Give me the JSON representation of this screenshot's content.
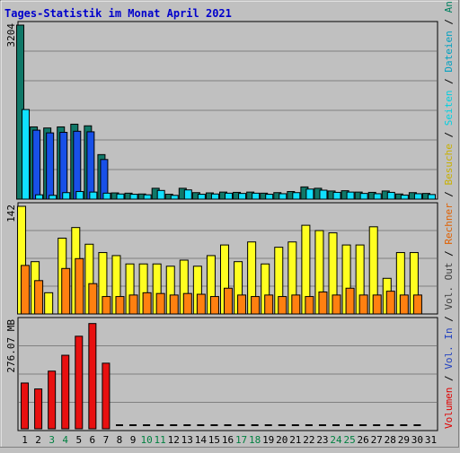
{
  "title": "Tages-Statistik im Monat April 2021",
  "colors": {
    "background": "#c0c0c0",
    "title": "#0000cc",
    "anfragen": "#008080",
    "dateien": "#00e0ff",
    "seiten": "#2050e0",
    "besuche": "#f8f800",
    "rechner": "#ff8000",
    "volumen": "#e00000",
    "weekend_label": "#008040",
    "weekday_label": "#000000"
  },
  "right_legend": [
    {
      "text": "Anfragen",
      "color": "#008060"
    },
    {
      "text": " / ",
      "color": "#000000"
    },
    {
      "text": "Dateien",
      "color": "#00a0c0"
    },
    {
      "text": " / ",
      "color": "#000000"
    },
    {
      "text": "Seiten",
      "color": "#00d0e0"
    },
    {
      "text": " / ",
      "color": "#000000"
    },
    {
      "text": "Besuche",
      "color": "#c8b000"
    },
    {
      "text": " / ",
      "color": "#000000"
    },
    {
      "text": "Rechner",
      "color": "#e06000"
    },
    {
      "text": " / ",
      "color": "#000000"
    },
    {
      "text": "Vol. Out",
      "color": "#404040"
    },
    {
      "text": " / ",
      "color": "#000000"
    },
    {
      "text": "Vol. In",
      "color": "#2040c0"
    },
    {
      "text": " / ",
      "color": "#000000"
    },
    {
      "text": "Volumen",
      "color": "#e00000"
    }
  ],
  "chart_data": [
    {
      "type": "bar",
      "panel": "top",
      "ymax_label": "3204",
      "ylim": [
        0,
        3204
      ],
      "categories": [
        "1",
        "2",
        "3",
        "4",
        "5",
        "6",
        "7",
        "8",
        "9",
        "10",
        "11",
        "12",
        "13",
        "14",
        "15",
        "16",
        "17",
        "18",
        "19",
        "20",
        "21",
        "22",
        "23",
        "24",
        "25",
        "26",
        "27",
        "28",
        "29",
        "30",
        "31"
      ],
      "series": [
        {
          "name": "Anfragen",
          "values": [
            3204,
            1330,
            1310,
            1330,
            1380,
            1350,
            820,
            115,
            110,
            95,
            200,
            90,
            200,
            120,
            115,
            130,
            125,
            130,
            110,
            120,
            140,
            225,
            200,
            150,
            155,
            130,
            125,
            150,
            95,
            120,
            105
          ]
        },
        {
          "name": "Seiten",
          "values": [
            0,
            1270,
            1220,
            1230,
            1250,
            1240,
            730,
            0,
            0,
            0,
            0,
            0,
            0,
            0,
            0,
            0,
            0,
            0,
            0,
            0,
            0,
            0,
            0,
            0,
            0,
            0,
            0,
            0,
            0,
            0,
            0
          ]
        },
        {
          "name": "Dateien",
          "values": [
            1650,
            80,
            70,
            120,
            140,
            130,
            110,
            95,
            90,
            80,
            160,
            70,
            170,
            90,
            95,
            110,
            105,
            110,
            90,
            100,
            120,
            185,
            165,
            125,
            130,
            105,
            100,
            125,
            75,
            100,
            85
          ]
        }
      ]
    },
    {
      "type": "bar",
      "panel": "middle",
      "ymax_label": "142",
      "ylim": [
        0,
        142
      ],
      "categories": [
        "1",
        "2",
        "3",
        "4",
        "5",
        "6",
        "7",
        "8",
        "9",
        "10",
        "11",
        "12",
        "13",
        "14",
        "15",
        "16",
        "17",
        "18",
        "19",
        "20",
        "21",
        "22",
        "23",
        "24",
        "25",
        "26",
        "27",
        "28",
        "29",
        "30",
        "31"
      ],
      "series": [
        {
          "name": "Besuche",
          "values": [
            142,
            69,
            28,
            100,
            114,
            92,
            81,
            77,
            66,
            66,
            66,
            63,
            71,
            63,
            77,
            91,
            69,
            95,
            66,
            88,
            95,
            117,
            110,
            107,
            91,
            91,
            115,
            47,
            81,
            81,
            0
          ]
        },
        {
          "name": "Rechner",
          "values": [
            64,
            44,
            0,
            60,
            73,
            40,
            23,
            23,
            25,
            28,
            27,
            25,
            27,
            26,
            23,
            34,
            25,
            23,
            25,
            23,
            25,
            23,
            29,
            25,
            34,
            25,
            25,
            30,
            25,
            25,
            0
          ]
        }
      ]
    },
    {
      "type": "bar",
      "panel": "bottom",
      "ymax_label": "276.07 MB",
      "ylim": [
        0,
        276.07
      ],
      "unit": "MB",
      "categories": [
        "1",
        "2",
        "3",
        "4",
        "5",
        "6",
        "7",
        "8",
        "9",
        "10",
        "11",
        "12",
        "13",
        "14",
        "15",
        "16",
        "17",
        "18",
        "19",
        "20",
        "21",
        "22",
        "23",
        "24",
        "25",
        "26",
        "27",
        "28",
        "29",
        "30",
        "31"
      ],
      "series": [
        {
          "name": "Volumen",
          "values": [
            120,
            105,
            150,
            190,
            238,
            270,
            170,
            1,
            1,
            1,
            1,
            1,
            1,
            1,
            1,
            1,
            1,
            1,
            1,
            1,
            1,
            1,
            1,
            1,
            1,
            1,
            1,
            1,
            1,
            1,
            0
          ]
        }
      ]
    }
  ],
  "day_labels": [
    {
      "text": "1",
      "weekend": false
    },
    {
      "text": "2",
      "weekend": false
    },
    {
      "text": "3",
      "weekend": true
    },
    {
      "text": "4",
      "weekend": true
    },
    {
      "text": "5",
      "weekend": false
    },
    {
      "text": "6",
      "weekend": false
    },
    {
      "text": "7",
      "weekend": false
    },
    {
      "text": "8",
      "weekend": false
    },
    {
      "text": "9",
      "weekend": false
    },
    {
      "text": "10",
      "weekend": true
    },
    {
      "text": "11",
      "weekend": true
    },
    {
      "text": "12",
      "weekend": false
    },
    {
      "text": "13",
      "weekend": false
    },
    {
      "text": "14",
      "weekend": false
    },
    {
      "text": "15",
      "weekend": false
    },
    {
      "text": "16",
      "weekend": false
    },
    {
      "text": "17",
      "weekend": true
    },
    {
      "text": "18",
      "weekend": true
    },
    {
      "text": "19",
      "weekend": false
    },
    {
      "text": "20",
      "weekend": false
    },
    {
      "text": "21",
      "weekend": false
    },
    {
      "text": "22",
      "weekend": false
    },
    {
      "text": "23",
      "weekend": false
    },
    {
      "text": "24",
      "weekend": true
    },
    {
      "text": "25",
      "weekend": true
    },
    {
      "text": "26",
      "weekend": false
    },
    {
      "text": "27",
      "weekend": false
    },
    {
      "text": "28",
      "weekend": false
    },
    {
      "text": "29",
      "weekend": false
    },
    {
      "text": "30",
      "weekend": false
    },
    {
      "text": "31",
      "weekend": false
    }
  ]
}
